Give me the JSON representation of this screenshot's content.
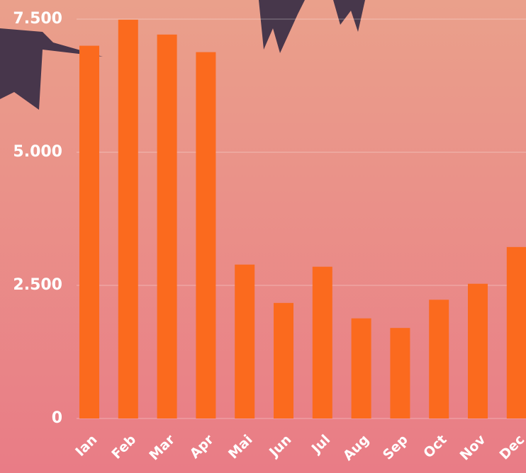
{
  "chart_data": {
    "type": "bar",
    "categories": [
      "Ian",
      "Feb",
      "Mar",
      "Apr",
      "Mai",
      "Jun",
      "Jul",
      "Aug",
      "Sep",
      "Oct",
      "Nov",
      "Dec"
    ],
    "values": [
      7000,
      7490,
      7210,
      6880,
      2890,
      2170,
      2850,
      1880,
      1700,
      2230,
      2530,
      3220
    ],
    "color": "#fb6a1e",
    "ylim": [
      0,
      7500
    ],
    "yticks": [
      0,
      {
        "value": 2500,
        "label": "2.500"
      },
      {
        "value": 5000,
        "label": "5.000"
      },
      {
        "value": 7500,
        "label": "7.500"
      }
    ],
    "grid": true
  }
}
